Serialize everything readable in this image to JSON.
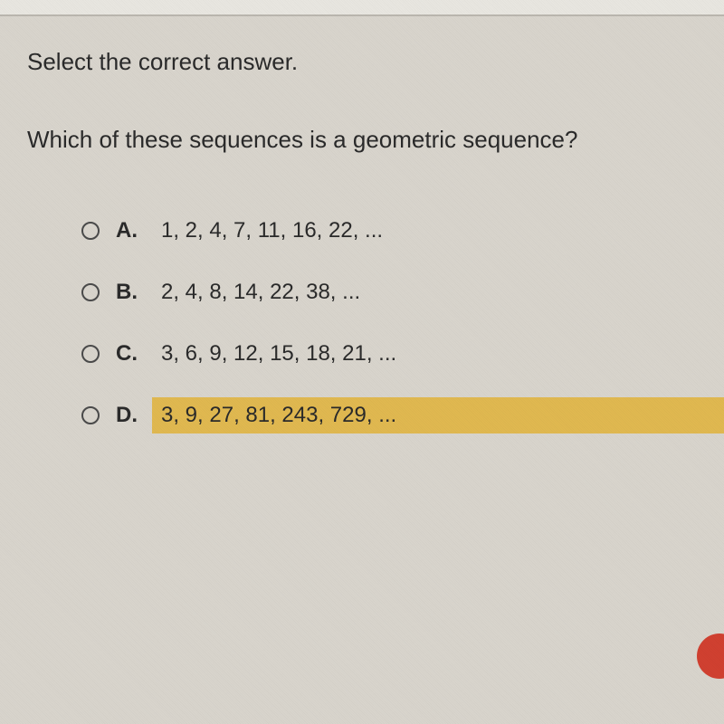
{
  "instruction": "Select the correct answer.",
  "question": "Which of these sequences is a geometric sequence?",
  "options": [
    {
      "letter": "A.",
      "text": "1, 2, 4, 7, 11, 16, 22, ...",
      "highlighted": false
    },
    {
      "letter": "B.",
      "text": "2, 4, 8, 14, 22, 38, ...",
      "highlighted": false
    },
    {
      "letter": "C.",
      "text": "3, 6, 9, 12, 15, 18, 21, ...",
      "highlighted": false
    },
    {
      "letter": "D.",
      "text": "3, 9, 27, 81, 243, 729, ...",
      "highlighted": true
    }
  ],
  "colors": {
    "background": "#d8d4cc",
    "text": "#2a2a2a",
    "highlight": "#e0b850",
    "radio_border": "#4a4a4a",
    "red_indicator": "#d04030"
  }
}
